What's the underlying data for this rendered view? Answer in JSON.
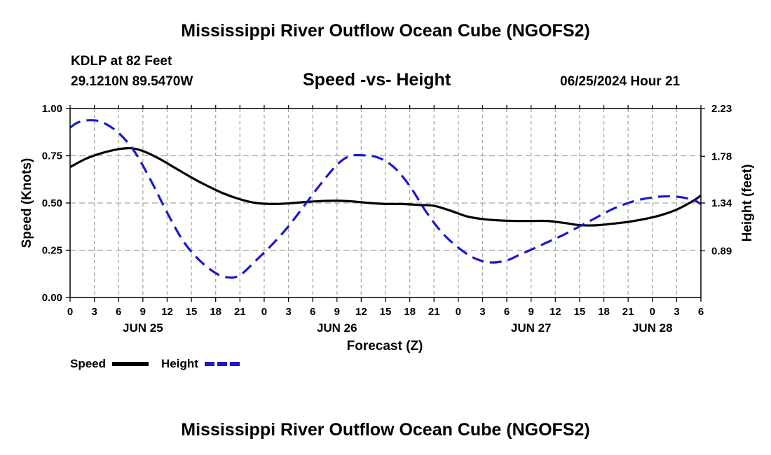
{
  "header": {
    "title": "Mississippi River Outflow Ocean Cube (NGOFS2)",
    "station": "KDLP at 82 Feet",
    "coords": "29.1210N  89.5470W",
    "datetime": "06/25/2024 Hour 21"
  },
  "footer": {
    "title": "Mississippi River Outflow Ocean Cube (NGOFS2)"
  },
  "chart_data": {
    "type": "line",
    "title": "Speed -vs- Height",
    "xlabel": "Forecast (Z)",
    "ylabel": "Speed (Knots)",
    "y2label": "Height (feet)",
    "grid": true,
    "x_unit": "hours from Jun 25 00Z",
    "xlim": [
      0,
      78
    ],
    "ylim": [
      0,
      1.0
    ],
    "y2lim": [
      0.45,
      2.23
    ],
    "x_tick_hours": [
      0,
      3,
      6,
      9,
      12,
      15,
      18,
      21,
      24,
      27,
      30,
      33,
      36,
      39,
      42,
      45,
      48,
      51,
      54,
      57,
      60,
      63,
      66,
      69,
      72,
      75,
      78
    ],
    "x_tick_labels": [
      "0",
      "3",
      "6",
      "9",
      "12",
      "15",
      "18",
      "21",
      "0",
      "3",
      "6",
      "9",
      "12",
      "15",
      "18",
      "21",
      "0",
      "3",
      "6",
      "9",
      "12",
      "15",
      "18",
      "21",
      "0",
      "3",
      "6"
    ],
    "y_ticks": [
      0.0,
      0.25,
      0.5,
      0.75,
      1.0
    ],
    "y_tick_labels": [
      "0.00",
      "0.25",
      "0.50",
      "0.75",
      "1.00"
    ],
    "y2_ticks": [
      0.89,
      1.34,
      1.78,
      2.23
    ],
    "y2_tick_labels": [
      "0.89",
      "1.34",
      "1.78",
      "2.23"
    ],
    "date_labels": [
      {
        "hour": 9,
        "label": "JUN 25"
      },
      {
        "hour": 33,
        "label": "JUN 26"
      },
      {
        "hour": 57,
        "label": "JUN 27"
      },
      {
        "hour": 72,
        "label": "JUN 28"
      }
    ],
    "series": [
      {
        "name": "Speed",
        "axis": "left",
        "color": "#000000",
        "dash": "solid",
        "x": [
          0,
          2,
          4,
          6,
          7.5,
          9,
          11,
          13,
          15,
          17,
          19,
          21,
          23,
          25,
          27,
          29,
          31,
          33,
          35,
          37,
          39,
          41,
          43,
          45,
          47,
          49,
          51,
          53,
          55,
          57,
          59,
          61,
          63,
          65,
          67,
          69,
          71,
          73,
          75,
          77,
          78
        ],
        "values": [
          0.69,
          0.735,
          0.765,
          0.785,
          0.79,
          0.775,
          0.735,
          0.685,
          0.635,
          0.59,
          0.55,
          0.52,
          0.5,
          0.495,
          0.498,
          0.505,
          0.51,
          0.512,
          0.508,
          0.5,
          0.495,
          0.495,
          0.49,
          0.485,
          0.46,
          0.43,
          0.415,
          0.408,
          0.405,
          0.405,
          0.405,
          0.395,
          0.383,
          0.382,
          0.39,
          0.4,
          0.415,
          0.435,
          0.465,
          0.51,
          0.54
        ]
      },
      {
        "name": "Height",
        "axis": "right",
        "color": "#1a1acc",
        "dash": "dashed",
        "x": [
          0,
          1,
          2.5,
          4,
          6,
          8,
          10,
          12,
          14,
          16,
          18,
          19.5,
          21,
          23,
          25,
          27,
          29,
          31,
          33,
          34.5,
          36,
          38,
          40,
          42,
          44,
          46,
          48,
          50,
          52,
          54,
          55.5,
          57,
          59,
          61,
          63,
          65,
          67,
          69,
          71,
          73,
          75,
          77,
          78
        ],
        "values": [
          2.05,
          2.1,
          2.12,
          2.1,
          2.0,
          1.82,
          1.55,
          1.25,
          0.98,
          0.8,
          0.68,
          0.64,
          0.66,
          0.8,
          0.95,
          1.12,
          1.32,
          1.52,
          1.7,
          1.78,
          1.79,
          1.77,
          1.68,
          1.5,
          1.26,
          1.06,
          0.92,
          0.82,
          0.78,
          0.8,
          0.85,
          0.9,
          0.97,
          1.04,
          1.12,
          1.2,
          1.28,
          1.34,
          1.38,
          1.4,
          1.4,
          1.37,
          1.33
        ]
      }
    ],
    "legend": [
      {
        "label": "Speed",
        "color": "#000000",
        "dash": "solid"
      },
      {
        "label": "Height",
        "color": "#1a1acc",
        "dash": "dashed"
      }
    ],
    "legend_position": "bottom-left"
  }
}
